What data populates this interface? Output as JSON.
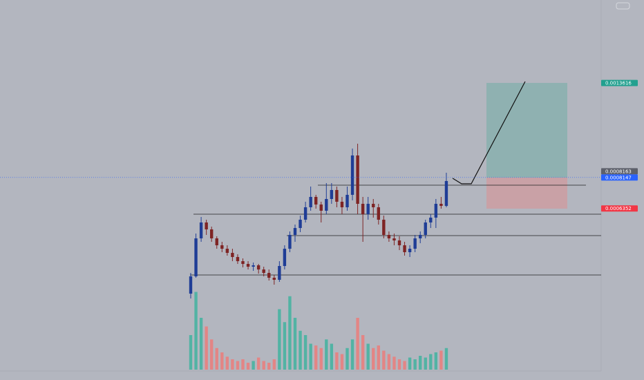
{
  "chart_data": {
    "type": "candlestick",
    "ylim": [
      -0.000358,
      0.001842
    ],
    "open": [
      0.000142,
      0.000242,
      0.000462,
      0.000554,
      0.000514,
      0.000462,
      0.000422,
      0.000402,
      0.000378,
      0.000354,
      0.00033,
      0.000314,
      0.000298,
      0.000306,
      0.000282,
      0.000262,
      0.000234,
      0.000222,
      0.000302,
      0.000402,
      0.000482,
      0.000522,
      0.00057,
      0.000642,
      0.000702,
      0.000658,
      0.000622,
      0.00069,
      0.000742,
      0.000674,
      0.000642,
      0.000714,
      0.000942,
      0.000662,
      0.000602,
      0.000662,
      0.000642,
      0.00057,
      0.000482,
      0.000462,
      0.00045,
      0.000422,
      0.000382,
      0.000402,
      0.000462,
      0.000482,
      0.000554,
      0.000582,
      0.000662,
      0.00065
    ],
    "high": [
      0.000262,
      0.00049,
      0.000586,
      0.00057,
      0.00053,
      0.000474,
      0.000442,
      0.000422,
      0.000402,
      0.00037,
      0.000346,
      0.00033,
      0.000322,
      0.000314,
      0.000298,
      0.000282,
      0.00025,
      0.00033,
      0.000422,
      0.000502,
      0.000542,
      0.000594,
      0.000674,
      0.000762,
      0.000714,
      0.000674,
      0.000782,
      0.000782,
      0.000762,
      0.000702,
      0.000762,
      0.000982,
      0.00101,
      0.000702,
      0.000702,
      0.00069,
      0.000662,
      0.000594,
      0.000502,
      0.00049,
      0.000474,
      0.000442,
      0.000422,
      0.000482,
      0.000502,
      0.00057,
      0.000602,
      0.00069,
      0.000702,
      0.000842
    ],
    "low": [
      0.000114,
      0.000234,
      0.000442,
      0.000482,
      0.000442,
      0.000402,
      0.000382,
      0.000362,
      0.00033,
      0.000314,
      0.000294,
      0.000282,
      0.000274,
      0.000258,
      0.000242,
      0.000218,
      0.000194,
      0.00021,
      0.000282,
      0.000382,
      0.000442,
      0.000498,
      0.000554,
      0.000622,
      0.000634,
      0.000554,
      0.000602,
      0.000662,
      0.000642,
      0.000602,
      0.000622,
      0.000682,
      0.000602,
      0.000442,
      0.00057,
      0.000582,
      0.000542,
      0.000462,
      0.000442,
      0.000422,
      0.000394,
      0.000362,
      0.000354,
      0.000382,
      0.000434,
      0.000462,
      0.000522,
      0.000522,
      0.000634,
      0.000642
    ],
    "close": [
      0.000242,
      0.000462,
      0.000554,
      0.000514,
      0.000462,
      0.000422,
      0.000402,
      0.000378,
      0.000354,
      0.00033,
      0.000314,
      0.000298,
      0.000306,
      0.000282,
      0.000262,
      0.000234,
      0.000222,
      0.000302,
      0.000402,
      0.000482,
      0.000522,
      0.00057,
      0.000642,
      0.000702,
      0.000658,
      0.000622,
      0.00069,
      0.000742,
      0.000674,
      0.000642,
      0.000714,
      0.000942,
      0.000662,
      0.000602,
      0.000662,
      0.000642,
      0.00057,
      0.000482,
      0.000462,
      0.00045,
      0.000422,
      0.000382,
      0.000402,
      0.000462,
      0.000482,
      0.000554,
      0.000582,
      0.000662,
      0.00065,
      0.000794
    ],
    "volume": [
      40,
      90,
      60,
      50,
      35,
      25,
      20,
      15,
      12,
      10,
      12,
      8,
      10,
      14,
      10,
      8,
      12,
      70,
      55,
      85,
      60,
      45,
      40,
      30,
      28,
      25,
      35,
      30,
      20,
      18,
      25,
      35,
      60,
      40,
      30,
      25,
      28,
      22,
      18,
      15,
      12,
      10,
      14,
      12,
      16,
      14,
      18,
      20,
      22,
      25
    ],
    "volume_ylim": [
      0,
      100
    ],
    "up_color": "#1f3d96",
    "down_color": "#7e2424",
    "volume_up_color": "#52b3a4",
    "volume_down_color": "#e38585",
    "price_labels": [
      {
        "value": 0.0013616,
        "color": "#22a08f"
      },
      {
        "value": 0.0008163,
        "color": "#5d606b"
      },
      {
        "value": 0.0008147,
        "color": "#2962ff"
      },
      {
        "value": 0.0006352,
        "color": "#f23645"
      }
    ]
  }
}
